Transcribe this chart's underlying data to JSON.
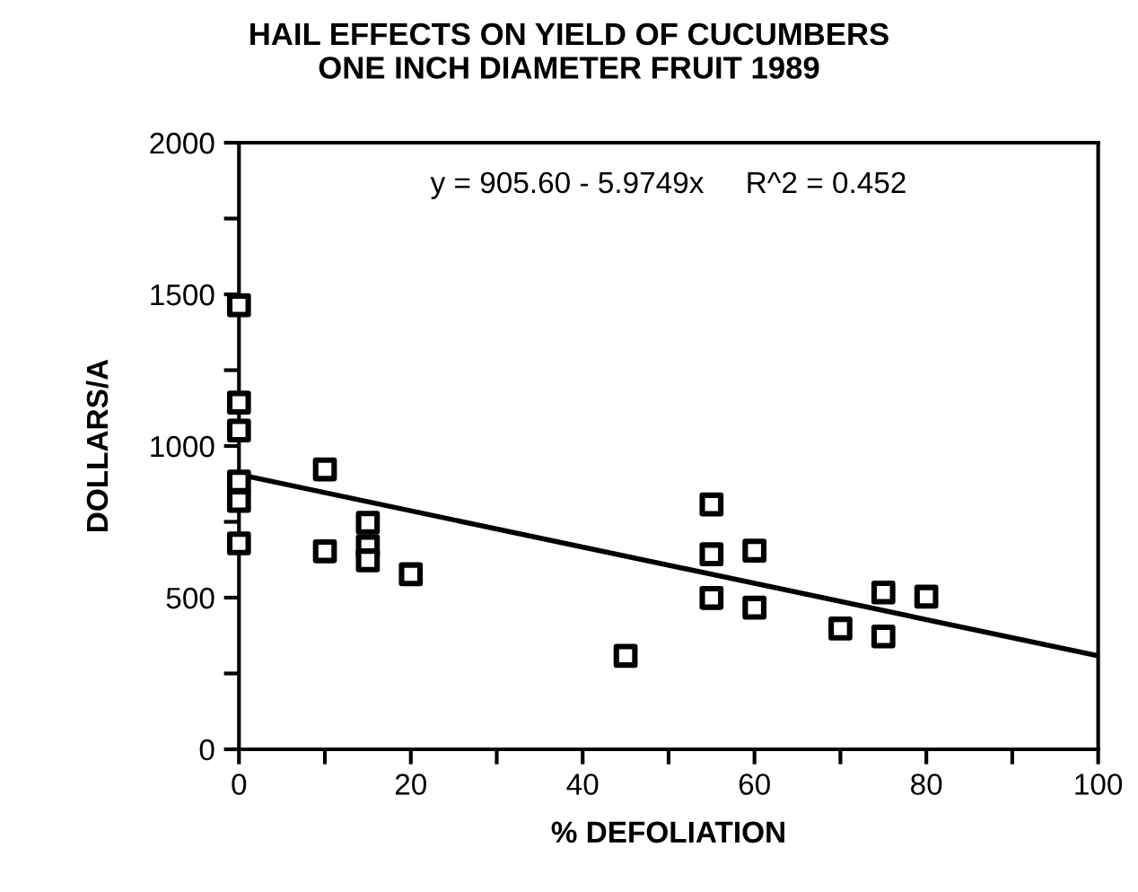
{
  "chart_data": {
    "type": "scatter",
    "title": "HAIL EFFECTS ON YIELD OF CUCUMBERS\nONE INCH DIAMETER FRUIT 1989",
    "xlabel": "% DEFOLIATION",
    "ylabel": "DOLLARS/A",
    "annotations": [
      "y = 905.60 - 5.9749x     R^2 = 0.452"
    ],
    "series": [
      {
        "color": "#000000",
        "marker": "square",
        "x": [
          0,
          0,
          0,
          0,
          0,
          0,
          10,
          10,
          15,
          15,
          15,
          20,
          45,
          55,
          55,
          55,
          60,
          60,
          70,
          75,
          75,
          80
        ],
        "values": [
          1464,
          1143,
          1051,
          883,
          819,
          679,
          923,
          653,
          747,
          669,
          623,
          577,
          308,
          807,
          643,
          499,
          655,
          467,
          398,
          517,
          372,
          503
        ]
      },
      {
        "type": "line",
        "color": "#000000",
        "line_style": "solid",
        "x": [
          0,
          100
        ],
        "values": [
          906,
          308
        ]
      }
    ],
    "xlim": [
      0,
      100
    ],
    "ylim": [
      0,
      2000
    ],
    "xticks": [
      0,
      {
        "value": 10,
        "label": null
      },
      20,
      {
        "value": 30,
        "label": null
      },
      40,
      {
        "value": 50,
        "label": null
      },
      60,
      {
        "value": 70,
        "label": null
      },
      80,
      {
        "value": 90,
        "label": null
      },
      100
    ],
    "yticks": [
      0,
      {
        "value": 250,
        "label": null
      },
      500,
      {
        "value": 750,
        "label": null
      },
      1000,
      {
        "value": 1250,
        "label": null
      },
      1500,
      {
        "value": 1750,
        "label": null
      },
      2000
    ],
    "grid": false,
    "legend": false
  }
}
